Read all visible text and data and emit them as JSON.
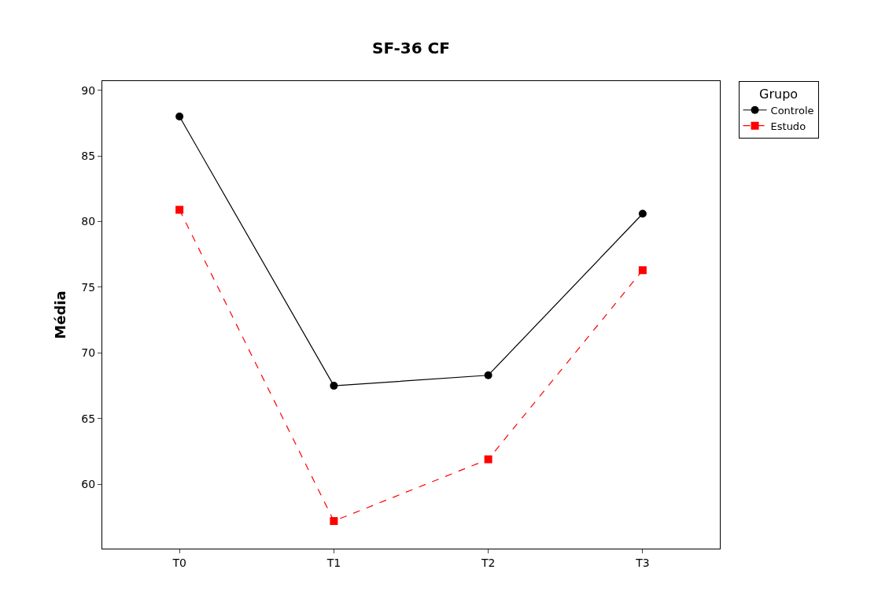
{
  "chart_data": {
    "type": "line",
    "title": "SF-36 CF",
    "ylabel": "Média",
    "legend_title": "Grupo",
    "categories": [
      "T0",
      "T1",
      "T2",
      "T3"
    ],
    "series": [
      {
        "name": "Controle",
        "color": "#000000",
        "values": [
          88.0,
          67.5,
          68.3,
          80.6
        ],
        "marker": "circle",
        "line_style": "solid"
      },
      {
        "name": "Estudo",
        "color": "#ff0000",
        "values": [
          80.9,
          57.2,
          61.9,
          76.3
        ],
        "marker": "square",
        "line_style": "dashed"
      }
    ],
    "ylim": [
      55.1,
      90.7
    ],
    "yticks": [
      60,
      65,
      70,
      75,
      80,
      85,
      90
    ],
    "legend": "top right"
  }
}
